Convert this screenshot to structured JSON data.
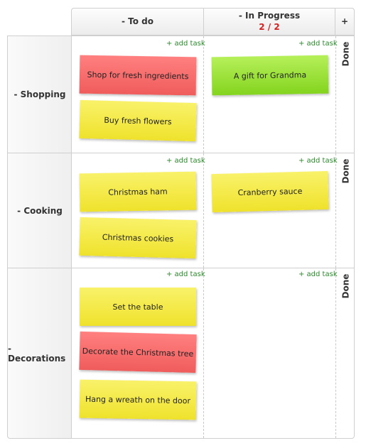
{
  "columns": {
    "todo": "- To do",
    "in_progress": "- In Progress",
    "in_progress_wip": "2 / 2",
    "add_column": "+"
  },
  "done_label": "Done",
  "add_task_label": "+ add task",
  "lanes": [
    {
      "name": "- Shopping",
      "todo": [
        {
          "text": "Shop for fresh ingredients",
          "color": "#f26b6b"
        },
        {
          "text": "Buy fresh flowers",
          "color": "#f3ea45"
        }
      ],
      "in_progress": [
        {
          "text": "A gift for Grandma",
          "color": "#9ce23c"
        }
      ]
    },
    {
      "name": "- Cooking",
      "todo": [
        {
          "text": "Christmas ham",
          "color": "#f3ea45"
        },
        {
          "text": "Christmas cookies",
          "color": "#f3ea45"
        }
      ],
      "in_progress": [
        {
          "text": "Cranberry sauce",
          "color": "#f3ea45"
        }
      ]
    },
    {
      "name": "- Decorations",
      "todo": [
        {
          "text": "Set the table",
          "color": "#f3ea45"
        },
        {
          "text": "Decorate the Christmas tree",
          "color": "#f26b6b"
        },
        {
          "text": "Hang a wreath on the door",
          "color": "#f3ea45"
        }
      ],
      "in_progress": []
    }
  ]
}
